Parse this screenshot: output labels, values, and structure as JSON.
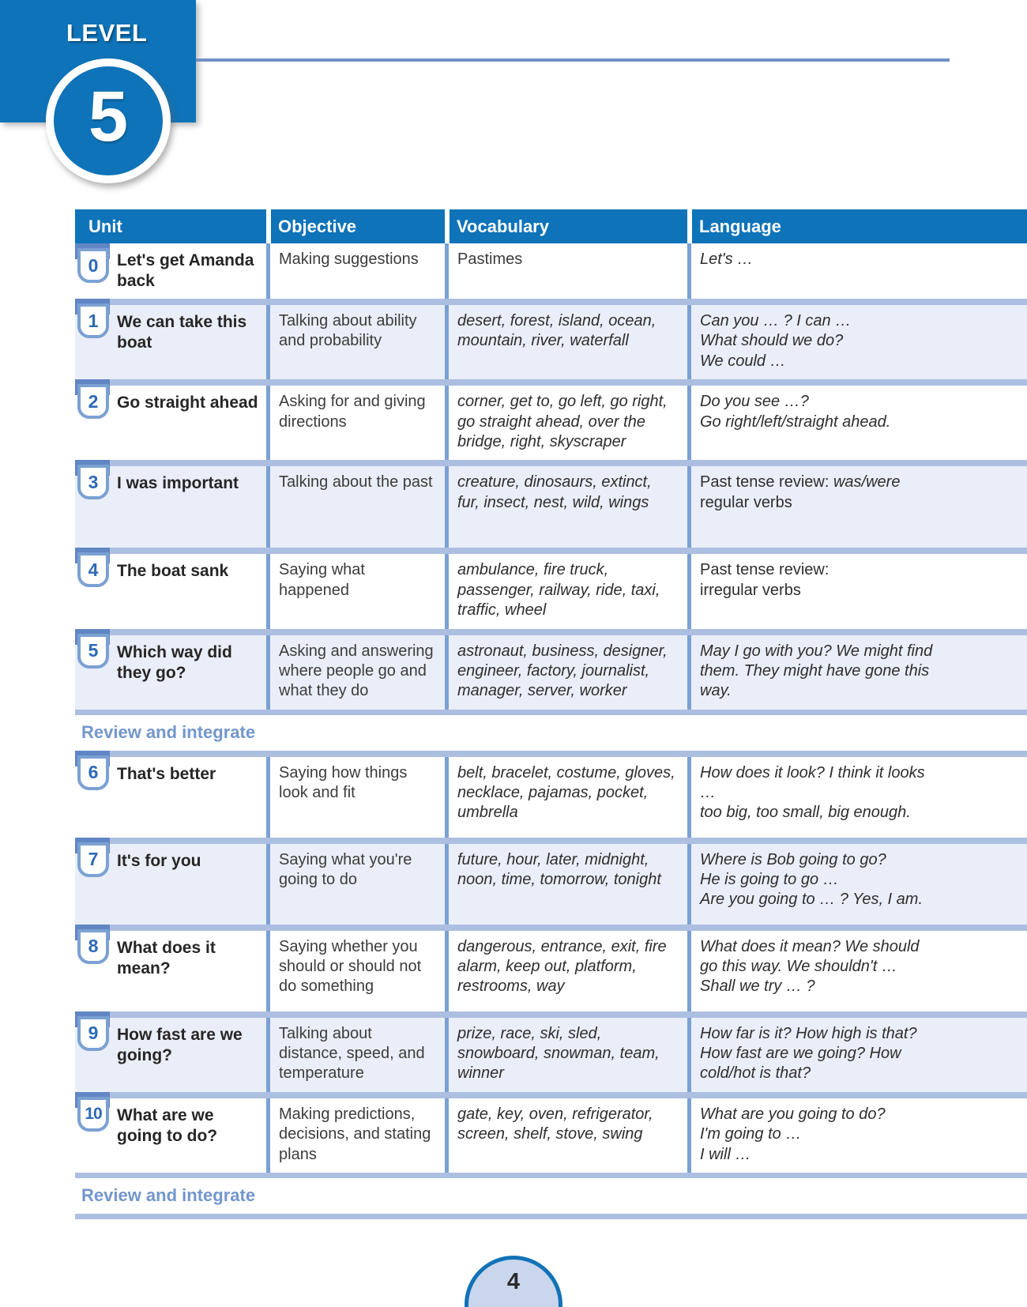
{
  "page": {
    "level_label": "LEVEL",
    "level_number": "5",
    "page_number": "4"
  },
  "table": {
    "headers": [
      "Unit",
      "Objective",
      "Vocabulary",
      "Language"
    ],
    "review_label": "Review and integrate",
    "rows": [
      {
        "type": "unit",
        "num": "0",
        "title": "Let's get Amanda back",
        "objective": "Making suggestions",
        "vocabulary": "Pastimes",
        "vocabulary_italic": false,
        "language": [
          [
            {
              "t": "Let's …",
              "i": true
            }
          ]
        ]
      },
      {
        "type": "unit",
        "num": "1",
        "title": "We can take this boat",
        "objective": "Talking about ability and probability",
        "vocabulary": "desert, forest, island, ocean, mountain, river, waterfall",
        "vocabulary_italic": true,
        "language": [
          [
            {
              "t": "Can you … ? I can …",
              "i": true
            }
          ],
          [
            {
              "t": "What should we do?",
              "i": true
            }
          ],
          [
            {
              "t": "We could …",
              "i": true
            }
          ]
        ]
      },
      {
        "type": "unit",
        "num": "2",
        "title": "Go straight ahead",
        "objective": "Asking for and giving directions",
        "vocabulary": "corner, get to, go left, go right, go straight ahead, over the bridge, right, skyscraper",
        "vocabulary_italic": true,
        "language": [
          [
            {
              "t": "Do you see …?",
              "i": true
            }
          ],
          [
            {
              "t": "Go right/left/straight ahead.",
              "i": true
            }
          ]
        ]
      },
      {
        "type": "unit",
        "num": "3",
        "title": "I was important",
        "objective": "Talking about the past",
        "vocabulary": "creature, dinosaurs, extinct, fur, insect, nest, wild, wings",
        "vocabulary_italic": true,
        "language": [
          [
            {
              "t": "Past tense review: ",
              "i": false
            },
            {
              "t": "was/were",
              "i": true
            }
          ],
          [
            {
              "t": "regular verbs",
              "i": false
            }
          ]
        ]
      },
      {
        "type": "unit",
        "num": "4",
        "title": "The boat sank",
        "objective": "Saying what happened",
        "vocabulary": "ambulance, fire truck, passenger, railway, ride, taxi, traffic, wheel",
        "vocabulary_italic": true,
        "language": [
          [
            {
              "t": "Past tense review:",
              "i": false
            }
          ],
          [
            {
              "t": "irregular verbs",
              "i": false
            }
          ]
        ]
      },
      {
        "type": "unit",
        "num": "5",
        "title": "Which way did they go?",
        "objective": "Asking and answering where people go and what they do",
        "vocabulary": "astronaut, business, designer, engineer, factory, journalist, manager, server, worker",
        "vocabulary_italic": true,
        "language": [
          [
            {
              "t": "May I go with you? We might find them. They might have gone this way.",
              "i": true
            }
          ]
        ]
      },
      {
        "type": "review"
      },
      {
        "type": "unit",
        "num": "6",
        "title": "That's better",
        "objective": "Saying how things look and fit",
        "vocabulary": "belt, bracelet, costume, gloves, necklace, pajamas, pocket, umbrella",
        "vocabulary_italic": true,
        "language": [
          [
            {
              "t": "How does it look? I think it looks …",
              "i": true
            }
          ],
          [
            {
              "t": "too big, too small, big enough.",
              "i": true
            }
          ]
        ]
      },
      {
        "type": "unit",
        "num": "7",
        "title": "It's for you",
        "objective": "Saying what you're going to do",
        "vocabulary": "future, hour, later, midnight, noon, time, tomorrow, tonight",
        "vocabulary_italic": true,
        "language": [
          [
            {
              "t": "Where is Bob going to go?",
              "i": true
            }
          ],
          [
            {
              "t": "He is going to go …",
              "i": true
            }
          ],
          [
            {
              "t": "Are you going to … ? Yes, I am.",
              "i": true
            }
          ]
        ]
      },
      {
        "type": "unit",
        "num": "8",
        "title": "What does it mean?",
        "objective": "Saying whether you should or should not do something",
        "vocabulary": "dangerous, entrance, exit, fire alarm, keep out, platform, restrooms, way",
        "vocabulary_italic": true,
        "language": [
          [
            {
              "t": "What does it mean? We should go this way. We shouldn't …",
              "i": true
            }
          ],
          [
            {
              "t": "Shall we try … ?",
              "i": true
            }
          ]
        ]
      },
      {
        "type": "unit",
        "num": "9",
        "title": "How fast are we going?",
        "objective": "Talking about distance, speed, and temperature",
        "vocabulary": "prize, race, ski, sled, snowboard, snowman, team, winner",
        "vocabulary_italic": true,
        "language": [
          [
            {
              "t": "How far is it? How high is that?",
              "i": true
            }
          ],
          [
            {
              "t": "How fast are we going? How cold/hot is that?",
              "i": true
            }
          ]
        ]
      },
      {
        "type": "unit",
        "num": "10",
        "title": "What are we going to do?",
        "objective": "Making predictions, decisions, and stating plans",
        "vocabulary": "gate, key, oven, refrigerator, screen, shelf, stove, swing",
        "vocabulary_italic": true,
        "language": [
          [
            {
              "t": "What are you going to do?",
              "i": true
            }
          ],
          [
            {
              "t": "I'm going to …",
              "i": true
            }
          ],
          [
            {
              "t": "I will …",
              "i": true
            }
          ]
        ]
      },
      {
        "type": "review"
      }
    ]
  }
}
